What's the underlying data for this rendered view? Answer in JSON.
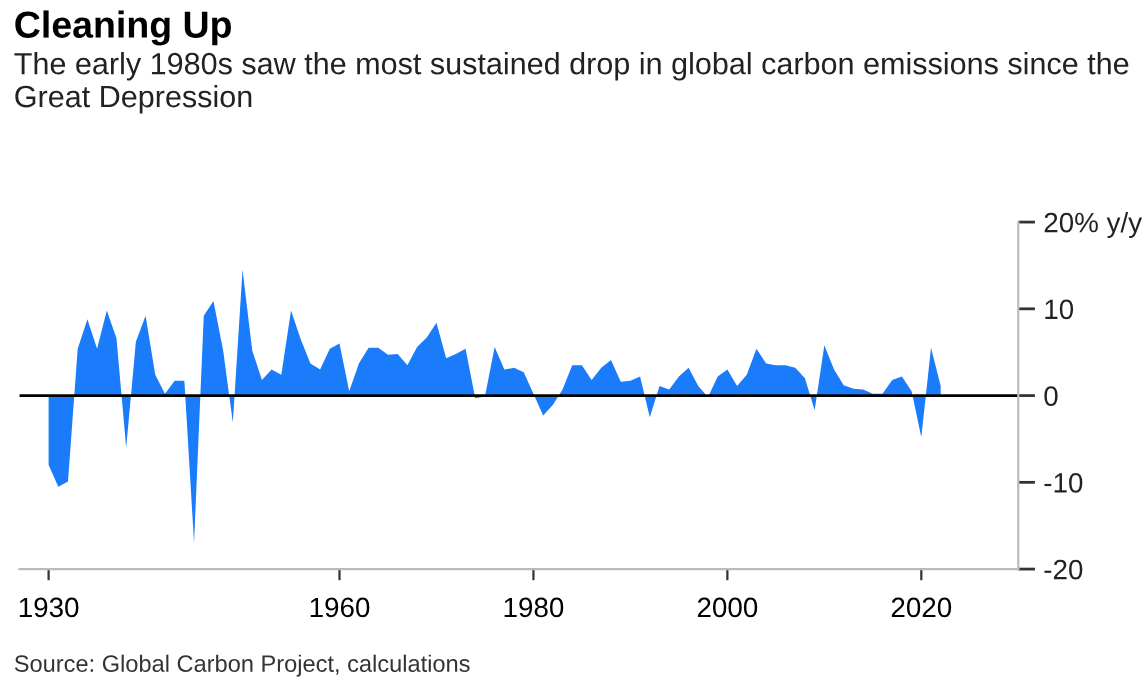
{
  "chart_data": {
    "type": "area",
    "title": "Cleaning Up",
    "subtitle": "The early 1980s saw the most sustained drop in global carbon emissions since the Great Depression",
    "annotations": [
      "Source: Global Carbon Project, calculations"
    ],
    "x": [
      1930,
      1931,
      1932,
      1933,
      1934,
      1935,
      1936,
      1937,
      1938,
      1939,
      1940,
      1941,
      1942,
      1943,
      1944,
      1945,
      1946,
      1947,
      1948,
      1949,
      1950,
      1951,
      1952,
      1953,
      1954,
      1955,
      1956,
      1957,
      1958,
      1959,
      1960,
      1961,
      1962,
      1963,
      1964,
      1965,
      1966,
      1967,
      1968,
      1969,
      1970,
      1971,
      1972,
      1973,
      1974,
      1975,
      1976,
      1977,
      1978,
      1979,
      1980,
      1981,
      1982,
      1983,
      1984,
      1985,
      1986,
      1987,
      1988,
      1989,
      1990,
      1991,
      1992,
      1993,
      1994,
      1995,
      1996,
      1997,
      1998,
      1999,
      2000,
      2001,
      2002,
      2003,
      2004,
      2005,
      2006,
      2007,
      2008,
      2009,
      2010,
      2011,
      2012,
      2013,
      2014,
      2015,
      2016,
      2017,
      2018,
      2019,
      2020,
      2021,
      2022
    ],
    "series": [
      {
        "color": "#1a7cfa",
        "values": [
          -8.0,
          -10.5,
          -9.9,
          5.4,
          8.8,
          5.4,
          9.8,
          6.6,
          -6.0,
          6.2,
          9.2,
          2.4,
          0.2,
          1.7,
          1.7,
          -17.0,
          9.2,
          10.9,
          5.2,
          -3.1,
          14.5,
          5.2,
          1.8,
          3.0,
          2.4,
          9.8,
          6.5,
          3.7,
          3.0,
          5.4,
          6.0,
          0.5,
          3.7,
          5.5,
          5.5,
          4.7,
          4.8,
          3.5,
          5.6,
          6.7,
          8.4,
          4.3,
          4.8,
          5.4,
          -0.3,
          -0.1,
          5.6,
          3.0,
          3.2,
          2.7,
          0.2,
          -2.3,
          -1.1,
          0.7,
          3.5,
          3.5,
          1.8,
          3.2,
          4.1,
          1.6,
          1.7,
          2.2,
          -2.5,
          1.1,
          0.7,
          2.2,
          3.2,
          1.1,
          -0.2,
          2.2,
          3.0,
          1.1,
          2.4,
          5.4,
          3.7,
          3.5,
          3.5,
          3.2,
          2.0,
          -1.7,
          5.8,
          3.0,
          1.2,
          0.8,
          0.7,
          0.2,
          0.2,
          1.8,
          2.2,
          0.5,
          -4.8,
          5.5,
          1.1
        ]
      }
    ],
    "xlim": [
      1927,
      2030
    ],
    "xticks": [
      1930,
      1960,
      1980,
      2000,
      2020
    ],
    "ylim": [
      -20,
      20
    ],
    "yticks": [
      -20,
      -10,
      0,
      10,
      {
        "value": 20,
        "label": "20% y/y"
      }
    ],
    "ref_lines": [
      {
        "axis": "y",
        "value": 0,
        "color": "#000000"
      }
    ],
    "grid": false,
    "legend": false
  }
}
